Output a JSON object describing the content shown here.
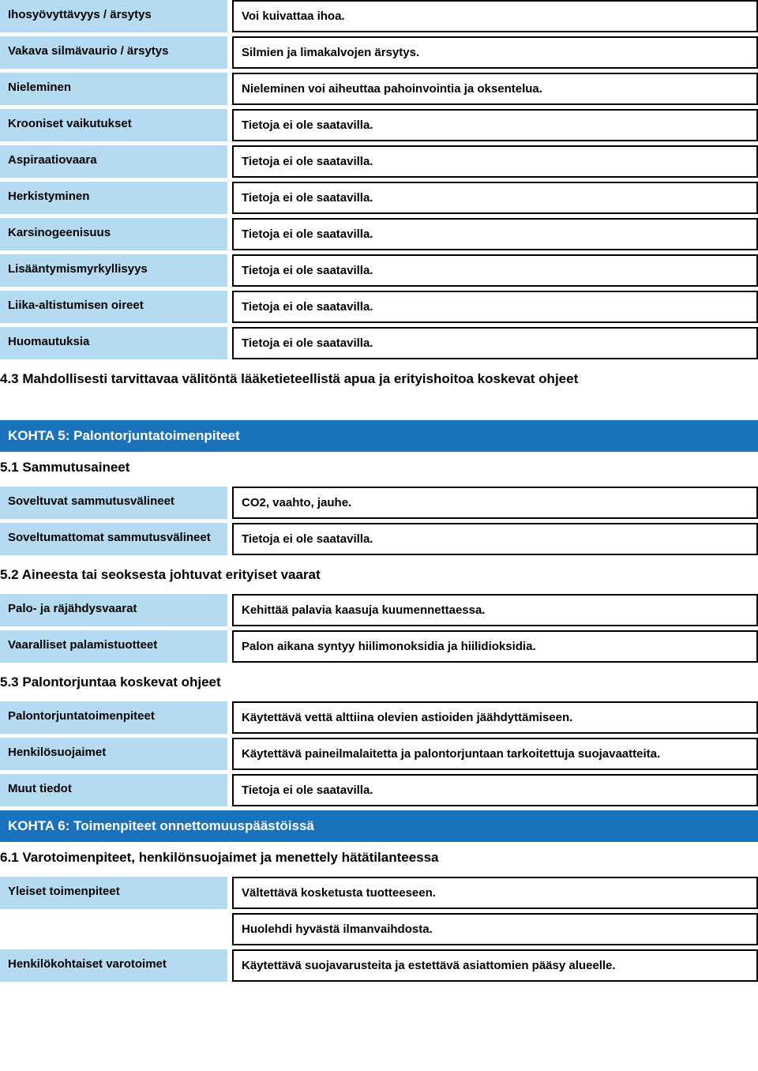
{
  "colors": {
    "label_bg": "#b5dbf2",
    "section_bg": "#1a72bd",
    "section_fg": "#ffffff",
    "border": "#000000",
    "text": "#000000"
  },
  "table1": {
    "rows": [
      {
        "label": "Ihosyövyttävyys / ärsytys",
        "value": "Voi kuivattaa ihoa."
      },
      {
        "label": "Vakava silmävaurio / ärsytys",
        "value": "Silmien ja limakalvojen ärsytys."
      },
      {
        "label": "Nieleminen",
        "value": "Nieleminen voi aiheuttaa pahoinvointia ja oksentelua."
      },
      {
        "label": "Krooniset vaikutukset",
        "value": "Tietoja ei ole saatavilla."
      },
      {
        "label": "Aspiraatiovaara",
        "value": "Tietoja ei ole saatavilla."
      },
      {
        "label": "Herkistyminen",
        "value": "Tietoja ei ole saatavilla."
      },
      {
        "label": "Karsinogeenisuus",
        "value": "Tietoja ei ole saatavilla."
      },
      {
        "label": "Lisääntymismyrkyllisyys",
        "value": "Tietoja ei ole saatavilla."
      },
      {
        "label": "Liika-altistumisen oireet",
        "value": "Tietoja ei ole saatavilla."
      },
      {
        "label": "Huomautuksia",
        "value": "Tietoja ei ole saatavilla."
      }
    ]
  },
  "heading_4_3": "4.3 Mahdollisesti tarvittavaa välitöntä lääketieteellistä apua ja erityishoitoa koskevat ohjeet",
  "kohta5": {
    "title": "KOHTA 5: Palontorjuntatoimenpiteet",
    "h5_1": "5.1 Sammutusaineet",
    "rows5_1": [
      {
        "label": "Soveltuvat sammutusvälineet",
        "value": "CO2, vaahto, jauhe."
      },
      {
        "label": "Soveltumattomat sammutusvälineet",
        "value": "Tietoja ei ole saatavilla."
      }
    ],
    "h5_2": "5.2 Aineesta tai seoksesta johtuvat erityiset vaarat",
    "rows5_2": [
      {
        "label": "Palo- ja räjähdysvaarat",
        "value": "Kehittää palavia kaasuja kuumennettaessa."
      },
      {
        "label": "Vaaralliset palamistuotteet",
        "value": "Palon aikana syntyy hiilimonoksidia ja hiilidioksidia."
      }
    ],
    "h5_3": "5.3 Palontorjuntaa koskevat ohjeet",
    "rows5_3": [
      {
        "label": "Palontorjuntatoimenpiteet",
        "value": "Käytettävä vettä alttiina olevien astioiden jäähdyttämiseen."
      },
      {
        "label": "Henkilösuojaimet",
        "value": "Käytettävä paineilmalaitetta ja palontorjuntaan tarkoitettuja suojavaatteita."
      },
      {
        "label": "Muut tiedot",
        "value": "Tietoja ei ole saatavilla."
      }
    ]
  },
  "kohta6": {
    "title": "KOHTA 6: Toimenpiteet onnettomuuspäästöissä",
    "h6_1": "6.1 Varotoimenpiteet, henkilönsuojaimet ja menettely hätätilanteessa",
    "rows6_1a": {
      "label": "Yleiset toimenpiteet",
      "value1": "Vältettävä kosketusta tuotteeseen.",
      "value2": "Huolehdi hyvästä ilmanvaihdosta."
    },
    "rows6_1b": {
      "label": "Henkilökohtaiset varotoimet",
      "value": "Käytettävä suojavarusteita ja estettävä asiattomien pääsy alueelle."
    }
  }
}
